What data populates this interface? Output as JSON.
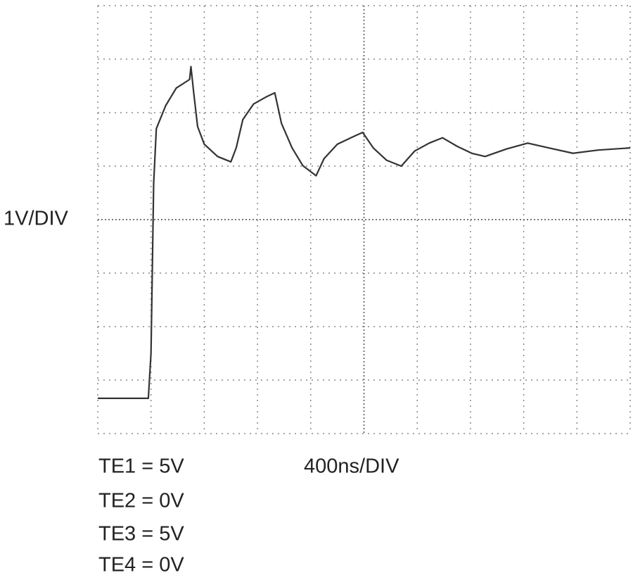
{
  "chart_data": {
    "type": "line",
    "y_label": "1V/DIV",
    "x_label": "400ns/DIV",
    "annotations": [
      "TE1 = 5V",
      "TE2 = 0V",
      "TE3 = 5V",
      "TE4 = 0V"
    ],
    "x": [
      0,
      380,
      400,
      420,
      440,
      510,
      590,
      690,
      700,
      720,
      750,
      800,
      900,
      1000,
      1040,
      1090,
      1170,
      1270,
      1330,
      1380,
      1460,
      1540,
      1640,
      1700,
      1800,
      1910,
      1990,
      2070,
      2170,
      2280,
      2380,
      2490,
      2590,
      2700,
      2810,
      2910,
      3070,
      3230,
      3390,
      3570,
      3760,
      4000
    ],
    "series": [
      {
        "color": "#333333",
        "values": [
          -3.34,
          -3.34,
          -2.5,
          0.68,
          1.7,
          2.13,
          2.46,
          2.62,
          2.86,
          2.39,
          1.74,
          1.41,
          1.18,
          1.08,
          1.34,
          1.87,
          2.16,
          2.3,
          2.37,
          1.8,
          1.34,
          1.01,
          0.82,
          1.14,
          1.41,
          1.54,
          1.63,
          1.34,
          1.11,
          1.0,
          1.28,
          1.43,
          1.53,
          1.37,
          1.24,
          1.18,
          1.32,
          1.43,
          1.34,
          1.24,
          1.3,
          1.34
        ]
      }
    ],
    "xlim": [
      0,
      4000
    ],
    "xticks": [
      0,
      400,
      800,
      1200,
      1600,
      2000,
      2400,
      2800,
      3200,
      3600,
      4000
    ],
    "ylim": [
      -4,
      4
    ],
    "yticks": [
      -4,
      -3,
      -2,
      -1,
      0,
      1,
      2,
      3,
      4
    ],
    "grid": true
  }
}
